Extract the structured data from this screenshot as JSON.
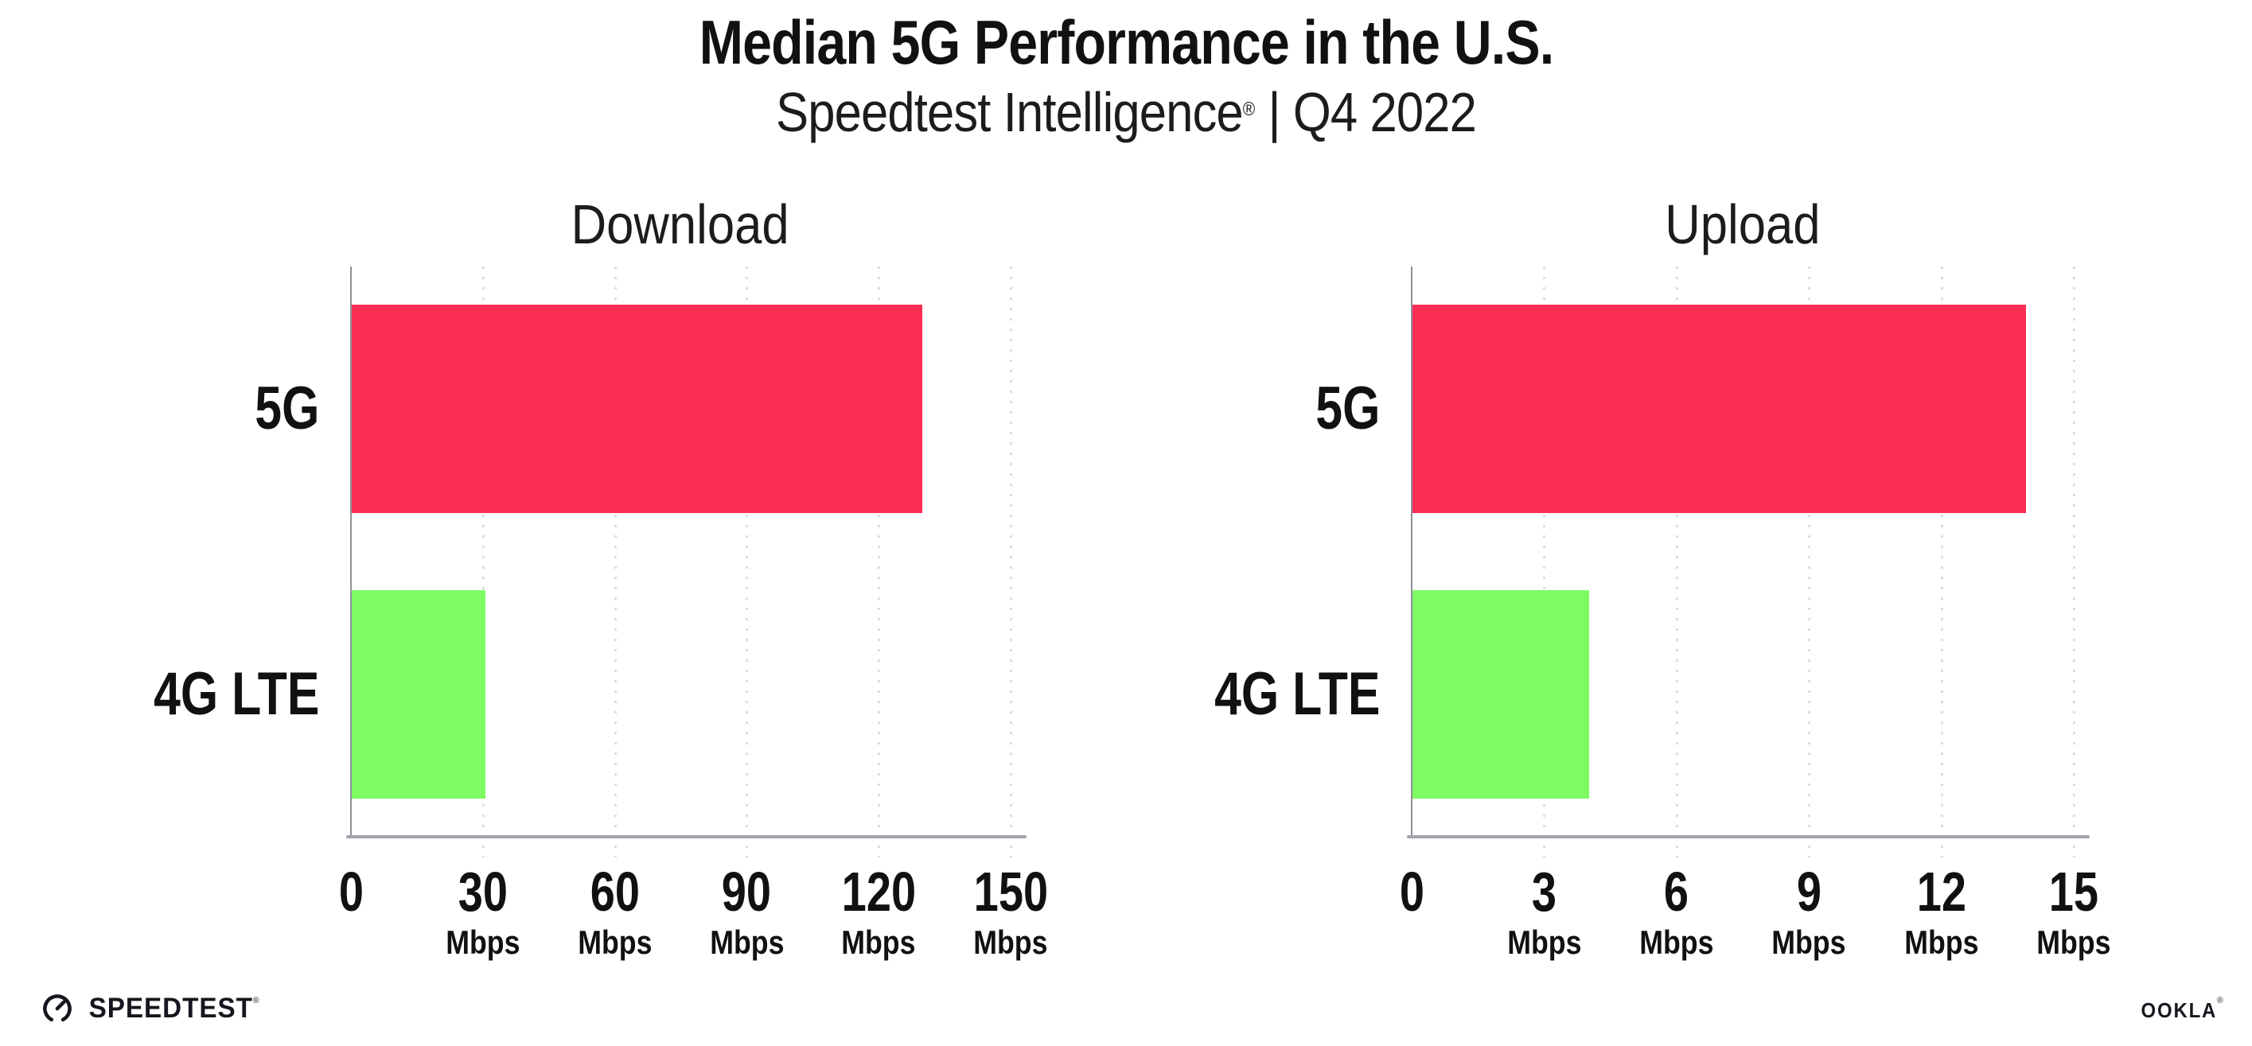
{
  "header": {
    "title": "Median 5G Performance in the U.S.",
    "subtitle_brand": "Speedtest Intelligence",
    "subtitle_mark": "®",
    "subtitle_rest": " | Q4 2022"
  },
  "chart_data": [
    {
      "type": "bar",
      "orientation": "horizontal",
      "title": "Download",
      "categories": [
        "5G",
        "4G LTE"
      ],
      "values": [
        129.7,
        30.4
      ],
      "unit": "Mbps",
      "xlim": [
        0,
        150
      ],
      "xticks": [
        0,
        30,
        60,
        90,
        120,
        150
      ],
      "xtick_unit_label": "Mbps",
      "bar_colors": [
        "#fc2e56",
        "#7efa62"
      ],
      "grid": "vertical-dotted",
      "legend": "none"
    },
    {
      "type": "bar",
      "orientation": "horizontal",
      "title": "Upload",
      "categories": [
        "5G",
        "4G LTE"
      ],
      "values": [
        13.9,
        4.0
      ],
      "unit": "Mbps",
      "xlim": [
        0,
        15
      ],
      "xticks": [
        0,
        3,
        6,
        9,
        12,
        15
      ],
      "xtick_unit_label": "Mbps",
      "bar_colors": [
        "#fc2e56",
        "#7efa62"
      ],
      "grid": "vertical-dotted",
      "legend": "none"
    }
  ],
  "colors": {
    "bar_5g": "#fc2e56",
    "bar_4g_lte": "#7efa62",
    "gridline": "#dcdce6",
    "axis": "#a2a2aa",
    "text": "#111111",
    "logo": "#16161e"
  },
  "footer": {
    "speedtest_text": "SPEEDTEST",
    "speedtest_mark": "®",
    "speedtest_icon": "gauge-icon",
    "ookla_text": "OOKLA",
    "ookla_mark": "®"
  }
}
